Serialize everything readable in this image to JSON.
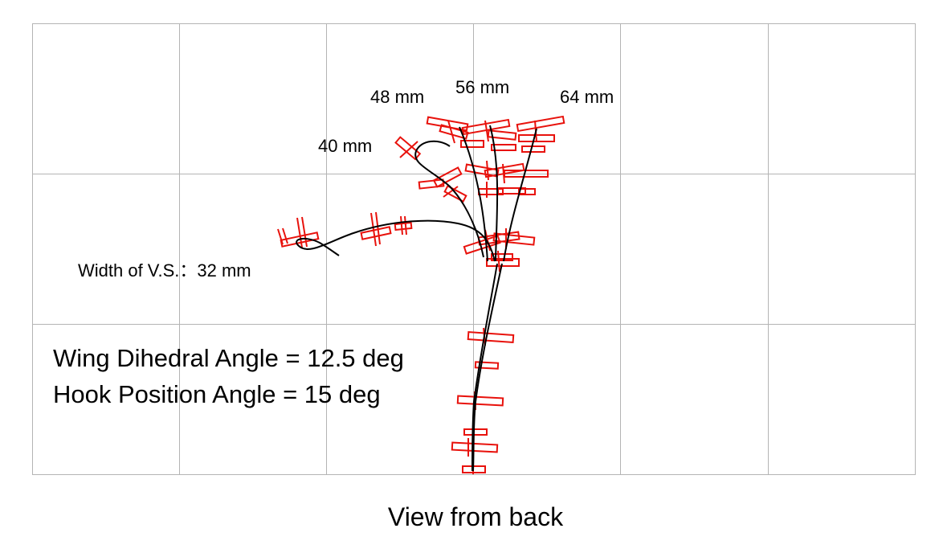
{
  "figure": {
    "caption": "View from back",
    "vs_label": "Width of V.S.：32 mm",
    "params": [
      "Wing Dihedral Angle  = 12.5 deg",
      "Hook Position Angle  = 15 deg"
    ],
    "trajectories": [
      {
        "label": "40 mm"
      },
      {
        "label": "48 mm"
      },
      {
        "label": "56 mm"
      },
      {
        "label": "64 mm"
      }
    ],
    "colors": {
      "trajectory": "#000000",
      "glider": "#e8120c",
      "grid": "#b4b4b4"
    }
  }
}
